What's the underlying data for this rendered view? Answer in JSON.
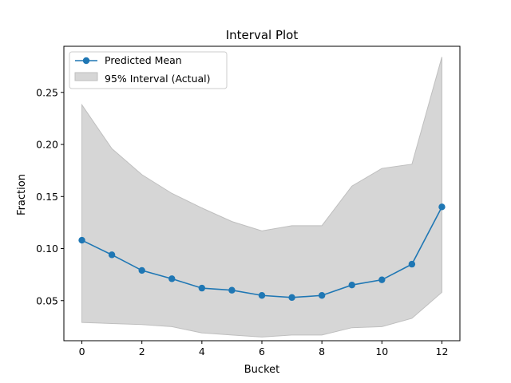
{
  "chart_data": {
    "type": "line",
    "title": "Interval Plot",
    "xlabel": "Bucket",
    "ylabel": "Fraction",
    "xlim": [
      -0.6,
      12.6
    ],
    "ylim": [
      0.0115,
      0.2943
    ],
    "x_ticks": [
      0,
      2,
      4,
      6,
      8,
      10,
      12
    ],
    "y_ticks": [
      0.05,
      0.1,
      0.15,
      0.2,
      0.25
    ],
    "y_tick_labels": [
      "0.05",
      "0.10",
      "0.15",
      "0.20",
      "0.25"
    ],
    "x": [
      0,
      1,
      2,
      3,
      4,
      5,
      6,
      7,
      8,
      9,
      10,
      11,
      12
    ],
    "series": [
      {
        "name": "Predicted Mean",
        "type": "line",
        "marker": "circle",
        "color": "#1f77b4",
        "values": [
          0.108,
          0.094,
          0.079,
          0.071,
          0.062,
          0.06,
          0.055,
          0.053,
          0.055,
          0.065,
          0.07,
          0.085,
          0.14
        ]
      },
      {
        "name": "95% Interval (Actual)",
        "type": "band",
        "color": "#d6d6d6",
        "edge_color": "#bfbfbf",
        "lower": [
          0.029,
          0.028,
          0.027,
          0.025,
          0.019,
          0.017,
          0.015,
          0.017,
          0.017,
          0.024,
          0.025,
          0.033,
          0.058
        ],
        "upper": [
          0.238,
          0.196,
          0.171,
          0.153,
          0.139,
          0.126,
          0.117,
          0.122,
          0.122,
          0.16,
          0.177,
          0.181,
          0.284
        ]
      }
    ],
    "legend": {
      "position": "top-left",
      "entries": [
        "Predicted Mean",
        "95% Interval (Actual)"
      ]
    },
    "grid": false
  }
}
